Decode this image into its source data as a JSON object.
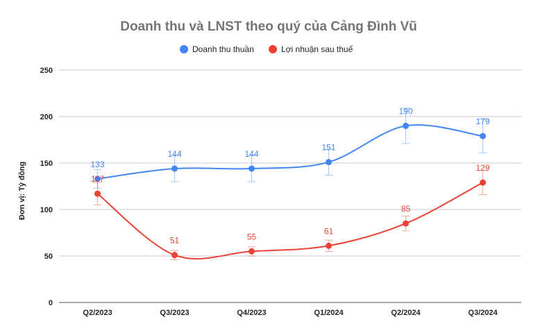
{
  "chart_data": {
    "type": "line",
    "title": "Doanh thu và LNST theo quý của Cảng Đình Vũ",
    "ylabel": "Đơn vị: Tỷ đồng",
    "xlabel": "",
    "categories": [
      "Q2/2023",
      "Q3/2023",
      "Q4/2023",
      "Q1/2024",
      "Q2/2024",
      "Q3/2024"
    ],
    "ylim": [
      0,
      250
    ],
    "yticks": [
      0,
      50,
      100,
      150,
      200,
      250
    ],
    "ytick_labels": [
      "0",
      "50",
      "100",
      "150",
      "200",
      "250"
    ],
    "grid": true,
    "legend_position": "top-center",
    "series": [
      {
        "name": "Doanh thu thuần",
        "color": "#4285F4",
        "values": [
          133,
          144,
          144,
          151,
          190,
          179
        ],
        "labels": [
          "133",
          "144",
          "144",
          "151",
          "190",
          "179"
        ],
        "error": [
          10,
          14,
          14,
          14,
          19,
          18
        ]
      },
      {
        "name": "Lợi nhuận sau thuế",
        "color": "#EA4335",
        "values": [
          117,
          51,
          55,
          61,
          85,
          129
        ],
        "labels": [
          "117",
          "51",
          "55",
          "61",
          "85",
          "129"
        ],
        "error": [
          12,
          5,
          5,
          6,
          8,
          13
        ]
      }
    ]
  }
}
